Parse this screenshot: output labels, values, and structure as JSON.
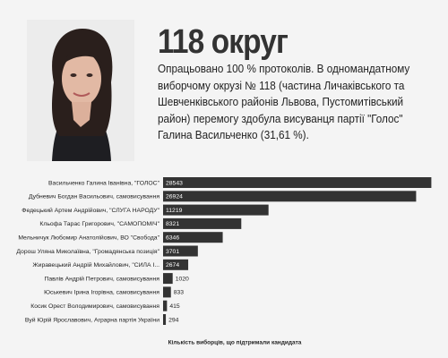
{
  "header": {
    "title": "118 округ",
    "description": "Опрацьовано 100 % протоколів. В одномандатному виборчому окрузі № 118 (частина Личаківського та Шевченківського районів Львова, Пустомитівський район) перемогу здобула висуванця партії \"Голос\" Галина Васильченко (31,61 %)."
  },
  "chart_data": {
    "type": "bar",
    "orientation": "horizontal",
    "color": "#333333",
    "x_label": "Кількість виборців, що підтримали кандидата",
    "categories": [
      "Васильченко Галина Іванівна, \"ГОЛОС\"",
      "Дубневич Богдан Васильович, самовисування",
      "Федецький Артем Андрійович, \"СЛУГА НАРОДУ\"",
      "Кльофа Тарас Григорович, \"САМОПОМІЧ\"",
      "Мельничук Любомир Анатолійович, ВО \"Свобода\"",
      "Дорош Уляна Миколаївна, \"Громадянська позиція\"",
      "Жиравецький Андрій Михайлович, \"СИЛА І...",
      "Павлів Андрій Петрович, самовисування",
      "Юськевич Ірина Ігорівна, самовисування",
      "Косик Орест Володимирович, самовисування",
      "Вуй Юрій Ярославович, Аграрна партія України"
    ],
    "values": [
      28543,
      26924,
      11219,
      8321,
      6346,
      3701,
      2674,
      1020,
      833,
      415,
      294
    ],
    "xlim": [
      0,
      28600
    ]
  }
}
